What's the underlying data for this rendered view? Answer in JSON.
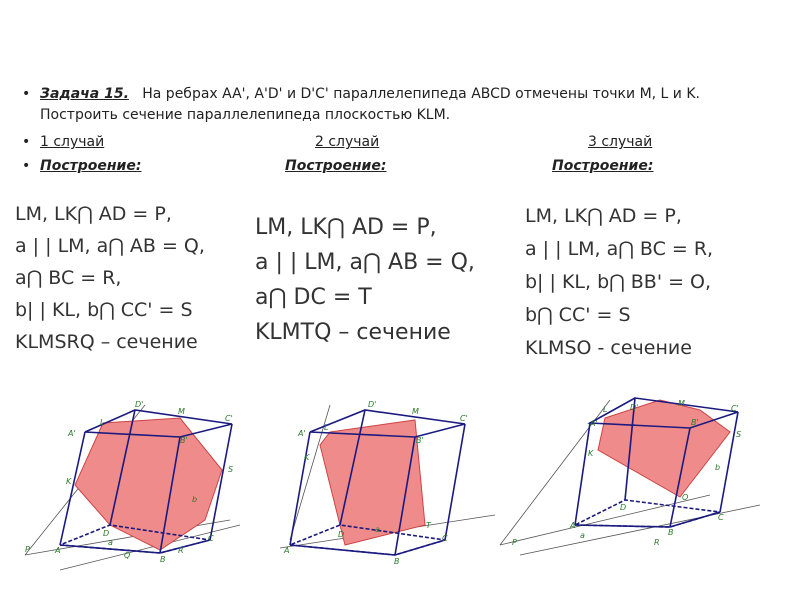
{
  "task": {
    "label": "Задача 15.",
    "text": "На ребрах AA', A'D' и D'C' параллелепипеда ABCD отмечены точки M, L и K.",
    "text2": "Построить сечение параллелепипеда плоскостью KLM."
  },
  "cases": [
    "1 случай",
    "2 случай",
    "3 случай"
  ],
  "construction": [
    "Построение:",
    "Построение:",
    "Построение:"
  ],
  "columns": [
    [
      "LM, LK⋂ AD = P,",
      "a | | LM, a⋂ AB = Q,",
      "a⋂ BC = R,",
      "b| | KL, b⋂ CC' = S",
      "KLMSRQ – сечение"
    ],
    [
      "LM, LK⋂ AD = P,",
      "a | | LM, a⋂ AB = Q,",
      "a⋂ DC = T",
      "KLMTQ – сечение"
    ],
    [
      "LM, LK⋂ AD = P,",
      "a | | LM,  a⋂ BC = R,",
      "b| | KL, b⋂ BB' = O,",
      "b⋂ CC' = S",
      "KLMSO - сечение"
    ]
  ],
  "figures": [
    {
      "labels": [
        "D'",
        "M",
        "C'",
        "A'",
        "L",
        "B'",
        "K",
        "S",
        "b",
        "a",
        "D",
        "P",
        "A",
        "Q",
        "B",
        "R",
        "C"
      ]
    },
    {
      "labels": [
        "D'",
        "M",
        "C'",
        "A'",
        "L",
        "B'",
        "K",
        "T",
        "a",
        "D",
        "A",
        "B",
        "C"
      ]
    },
    {
      "labels": [
        "D'",
        "M",
        "C'",
        "A'",
        "L",
        "B'",
        "K",
        "S",
        "O",
        "b",
        "a",
        "D",
        "P",
        "A",
        "B",
        "R",
        "C"
      ]
    }
  ]
}
